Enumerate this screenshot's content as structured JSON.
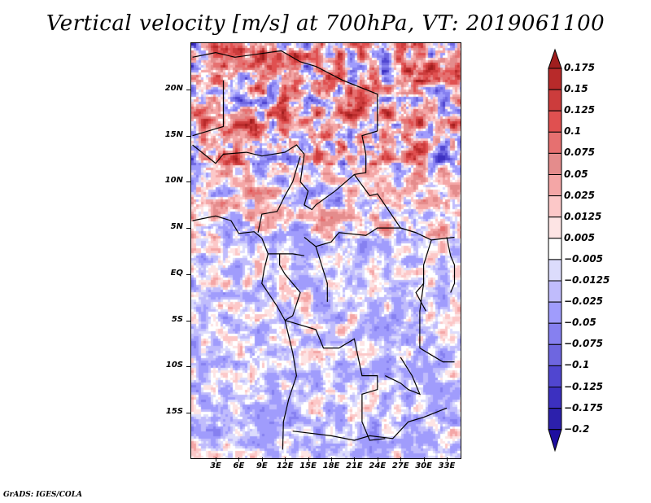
{
  "chart_data": {
    "type": "heatmap",
    "title": "Vertical velocity [m/s] at 700hPa, VT: 2019061100",
    "variable": "Vertical velocity",
    "units": "m/s",
    "level": "700hPa",
    "valid_time": "2019061100",
    "projection": "lat-lon",
    "xlabel": "",
    "ylabel": "",
    "lon_range": [
      0,
      35
    ],
    "lat_range": [
      -20,
      25
    ],
    "x_ticks": [
      "3E",
      "6E",
      "9E",
      "12E",
      "15E",
      "18E",
      "21E",
      "24E",
      "27E",
      "30E",
      "33E"
    ],
    "x_tick_values": [
      3,
      6,
      9,
      12,
      15,
      18,
      21,
      24,
      27,
      30,
      33
    ],
    "y_ticks": [
      "20N",
      "15N",
      "10N",
      "5N",
      "EQ",
      "5S",
      "10S",
      "15S"
    ],
    "y_tick_values": [
      20,
      15,
      10,
      5,
      0,
      -5,
      -10,
      -15
    ],
    "colorbar": {
      "levels": [
        "0.175",
        "0.15",
        "0.125",
        "0.1",
        "0.075",
        "0.05",
        "0.025",
        "0.0125",
        "0.005",
        "−0.005",
        "−0.0125",
        "−0.025",
        "−0.05",
        "−0.075",
        "−0.1",
        "−0.125",
        "−0.175",
        "−0.2"
      ],
      "level_values": [
        0.175,
        0.15,
        0.125,
        0.1,
        0.075,
        0.05,
        0.025,
        0.0125,
        0.005,
        -0.005,
        -0.0125,
        -0.025,
        -0.05,
        -0.075,
        -0.1,
        -0.125,
        -0.175,
        -0.2
      ],
      "colors_top_to_bottom": [
        "#a01e1e",
        "#b82a2a",
        "#cc3c3c",
        "#e05050",
        "#e67070",
        "#e48c8c",
        "#f4a6a6",
        "#fcc8c8",
        "#fde4e4",
        "#ffffff",
        "#dcdcfc",
        "#c0bcfc",
        "#a09cfc",
        "#8680f0",
        "#6e66e0",
        "#5046d0",
        "#3c30c0",
        "#2c20ac",
        "#1e0ea0"
      ],
      "extend": "both"
    },
    "overlays": [
      "coastlines",
      "country borders"
    ],
    "field_description": "Noisy mesoscale pattern: strong positive (red) over Sahel/southern Sahara 12-22N, mixed red/blue over Nigeria-Cameroon-CAR, predominantly weak negative (light blue) over Gulf of Guinea, Congo basin, Angola and South Atlantic"
  },
  "footer": {
    "credit": "GrADS: IGES/COLA"
  }
}
